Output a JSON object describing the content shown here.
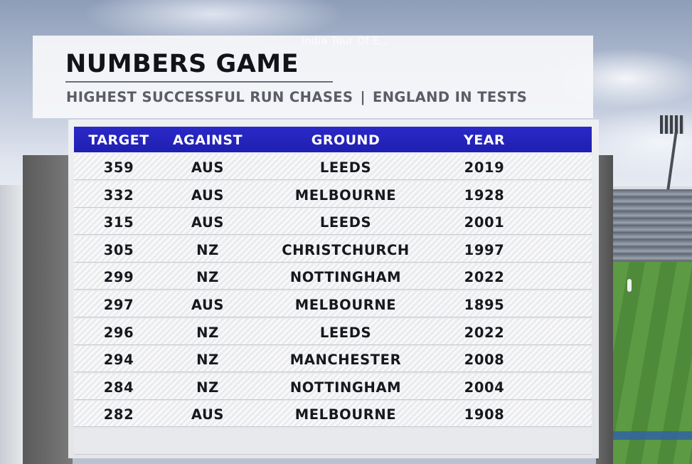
{
  "broadcast": {
    "overlay_text": "India Tour Of E..."
  },
  "graphic": {
    "title": "NUMBERS GAME",
    "subtitle_left": "HIGHEST SUCCESSFUL RUN CHASES",
    "subtitle_sep": "|",
    "subtitle_right": "ENGLAND IN TESTS"
  },
  "table": {
    "columns": {
      "target": "TARGET",
      "against": "AGAINST",
      "ground": "GROUND",
      "year": "YEAR"
    },
    "rows": [
      {
        "target": "359",
        "against": "AUS",
        "ground": "LEEDS",
        "year": "2019"
      },
      {
        "target": "332",
        "against": "AUS",
        "ground": "MELBOURNE",
        "year": "1928"
      },
      {
        "target": "315",
        "against": "AUS",
        "ground": "LEEDS",
        "year": "2001"
      },
      {
        "target": "305",
        "against": "NZ",
        "ground": "CHRISTCHURCH",
        "year": "1997"
      },
      {
        "target": "299",
        "against": "NZ",
        "ground": "NOTTINGHAM",
        "year": "2022"
      },
      {
        "target": "297",
        "against": "AUS",
        "ground": "MELBOURNE",
        "year": "1895"
      },
      {
        "target": "296",
        "against": "NZ",
        "ground": "LEEDS",
        "year": "2022"
      },
      {
        "target": "294",
        "against": "NZ",
        "ground": "MANCHESTER",
        "year": "2008"
      },
      {
        "target": "284",
        "against": "NZ",
        "ground": "NOTTINGHAM",
        "year": "2004"
      },
      {
        "target": "282",
        "against": "AUS",
        "ground": "MELBOURNE",
        "year": "1908"
      }
    ]
  },
  "colors": {
    "header_blue": "#2323bd",
    "title_text": "#111318",
    "subtitle_text": "#595d66"
  }
}
